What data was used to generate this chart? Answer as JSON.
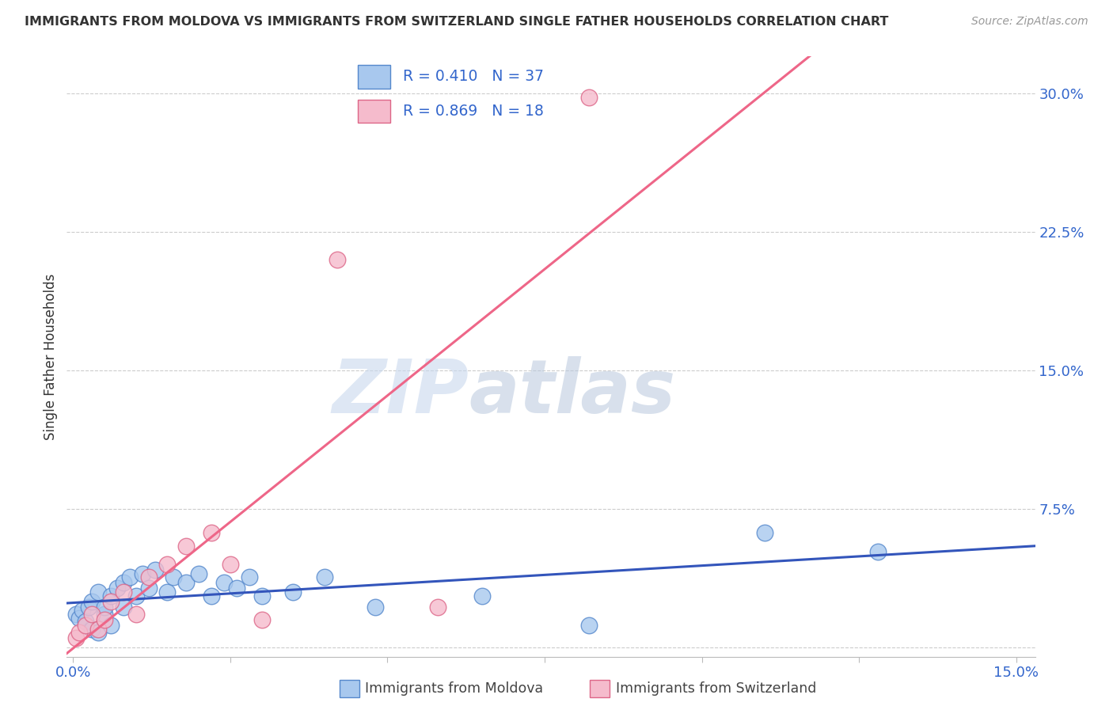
{
  "title": "IMMIGRANTS FROM MOLDOVA VS IMMIGRANTS FROM SWITZERLAND SINGLE FATHER HOUSEHOLDS CORRELATION CHART",
  "source": "Source: ZipAtlas.com",
  "ylabel": "Single Father Households",
  "xlabel_moldova": "Immigrants from Moldova",
  "xlabel_switzerland": "Immigrants from Switzerland",
  "xlim": [
    -0.001,
    0.153
  ],
  "ylim": [
    -0.005,
    0.32
  ],
  "ytick_vals_right": [
    0.0,
    0.075,
    0.15,
    0.225,
    0.3
  ],
  "ytick_labels_right": [
    "",
    "7.5%",
    "15.0%",
    "22.5%",
    "30.0%"
  ],
  "xtick_positions": [
    0.0,
    0.025,
    0.05,
    0.075,
    0.1,
    0.125,
    0.15
  ],
  "xtick_labels": [
    "0.0%",
    "",
    "",
    "",
    "",
    "",
    "15.0%"
  ],
  "moldova_face_color": "#A8C8EE",
  "moldova_edge_color": "#5588CC",
  "switzerland_face_color": "#F5BBCC",
  "switzerland_edge_color": "#DD6688",
  "moldova_line_color": "#3355BB",
  "switzerland_line_color": "#EE6688",
  "legend_color": "#3366CC",
  "text_color": "#333333",
  "grid_color": "#CCCCCC",
  "background_color": "#FFFFFF",
  "moldova_x": [
    0.0005,
    0.001,
    0.0015,
    0.002,
    0.0025,
    0.003,
    0.003,
    0.004,
    0.004,
    0.005,
    0.005,
    0.006,
    0.006,
    0.007,
    0.008,
    0.008,
    0.009,
    0.01,
    0.011,
    0.012,
    0.013,
    0.015,
    0.016,
    0.018,
    0.02,
    0.022,
    0.024,
    0.026,
    0.028,
    0.03,
    0.035,
    0.04,
    0.048,
    0.065,
    0.082,
    0.11,
    0.128
  ],
  "moldova_y": [
    0.018,
    0.016,
    0.02,
    0.014,
    0.022,
    0.01,
    0.025,
    0.008,
    0.03,
    0.018,
    0.022,
    0.028,
    0.012,
    0.032,
    0.035,
    0.022,
    0.038,
    0.028,
    0.04,
    0.032,
    0.042,
    0.03,
    0.038,
    0.035,
    0.04,
    0.028,
    0.035,
    0.032,
    0.038,
    0.028,
    0.03,
    0.038,
    0.022,
    0.028,
    0.012,
    0.062,
    0.052
  ],
  "switzerland_x": [
    0.0005,
    0.001,
    0.002,
    0.003,
    0.004,
    0.005,
    0.006,
    0.008,
    0.01,
    0.012,
    0.015,
    0.018,
    0.022,
    0.025,
    0.03,
    0.042,
    0.058,
    0.082
  ],
  "switzerland_y": [
    0.005,
    0.008,
    0.012,
    0.018,
    0.01,
    0.015,
    0.025,
    0.03,
    0.018,
    0.038,
    0.045,
    0.055,
    0.062,
    0.045,
    0.015,
    0.21,
    0.022,
    0.298
  ],
  "watermark_part1": "ZIP",
  "watermark_part2": "atlas",
  "watermark_color1": "#C8D8EE",
  "watermark_color2": "#B8C8DD"
}
